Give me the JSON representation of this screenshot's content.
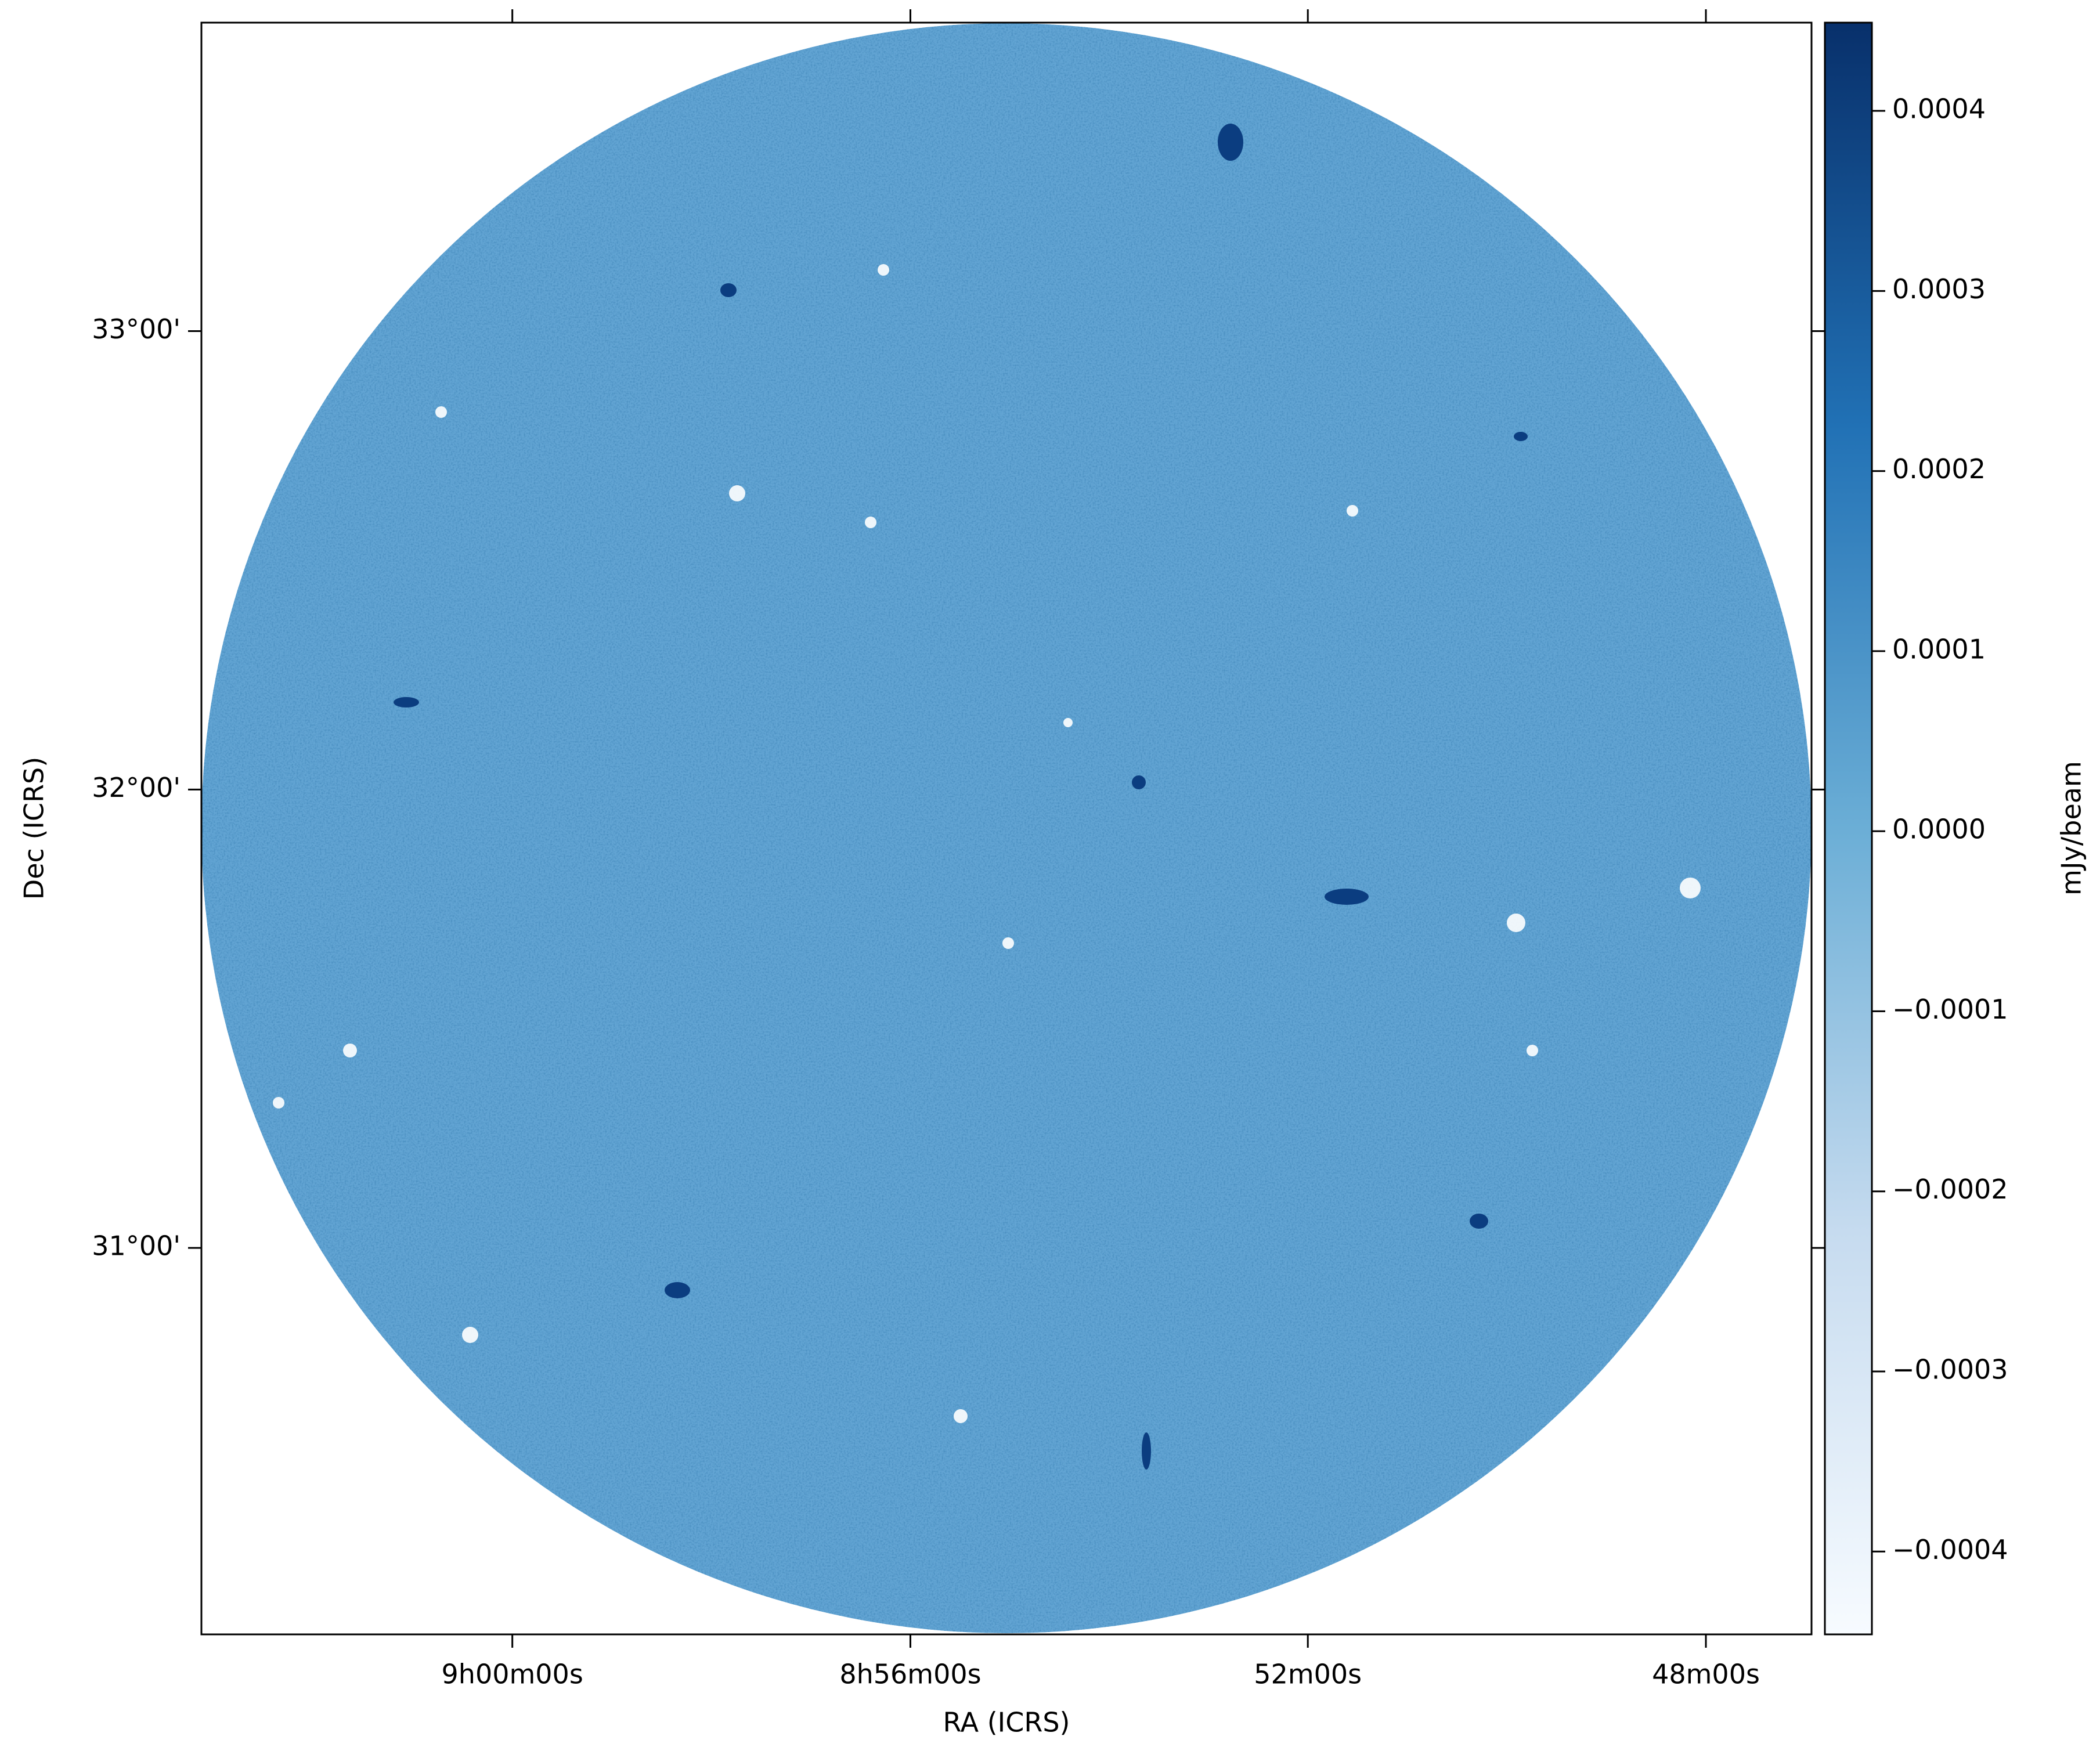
{
  "chart_data": {
    "type": "image",
    "xlabel": "RA (ICRS)",
    "ylabel": "Dec (ICRS)",
    "xlim": [
      9.0521,
      8.7823
    ],
    "xticks": [
      {
        "value": 9.0,
        "label": "9h00m00s"
      },
      {
        "value": 8.9333,
        "label": "8h56m00s"
      },
      {
        "value": 8.8667,
        "label": "52m00s"
      },
      {
        "value": 8.8,
        "label": "48m00s"
      }
    ],
    "ylim": [
      30.157,
      33.673
    ],
    "yticks": [
      {
        "value": 31,
        "label": "31°00'"
      },
      {
        "value": 32,
        "label": "32°00'"
      },
      {
        "value": 33,
        "label": "33°00'"
      }
    ],
    "colorbar": {
      "label": "mJy/beam",
      "lim": [
        -0.000446,
        0.000449
      ],
      "colors": [
        "#f7fbff",
        "#c6dbef",
        "#6baed6",
        "#2171b5",
        "#08306b"
      ],
      "ticks": [
        {
          "value": -0.0004,
          "label": "−0.0004"
        },
        {
          "value": -0.0003,
          "label": "−0.0003"
        },
        {
          "value": -0.0002,
          "label": "−0.0002"
        },
        {
          "value": -0.0001,
          "label": "−0.0001"
        },
        {
          "value": 0,
          "label": "0.0000"
        },
        {
          "value": 0.0001,
          "label": "0.0001"
        },
        {
          "value": 0.0002,
          "label": "0.0002"
        },
        {
          "value": 0.0003,
          "label": "0.0003"
        },
        {
          "value": 0.0004,
          "label": "0.0004"
        }
      ]
    }
  }
}
